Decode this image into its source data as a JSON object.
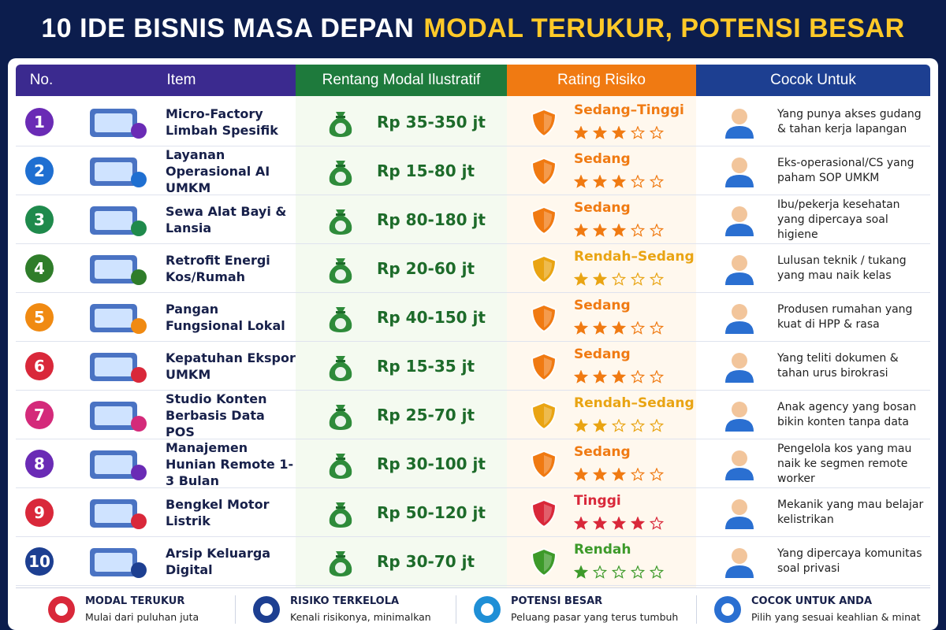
{
  "header": {
    "title": "10 IDE BISNIS MASA DEPAN",
    "title_highlight": "MODAL TERUKUR, POTENSI BESAR"
  },
  "table": {
    "columns": [
      "No.",
      "Item",
      "Rentang Modal Ilustratif",
      "Rating Risiko",
      "Cocok Untuk"
    ],
    "rows": [
      {
        "no": 1,
        "color": "#6a2bb5",
        "item": "Micro-Factory Limbah Spesifik",
        "modal": "Rp 35-350 jt",
        "risk": "Sedang–Tinggi",
        "risk_color": "#f07a12",
        "stars": 3,
        "fit": "Yang punya akses gudang & tahan kerja lapangan"
      },
      {
        "no": 2,
        "color": "#1f6fd1",
        "item": "Layanan Operasional AI UMKM",
        "modal": "Rp 15-80 jt",
        "risk": "Sedang",
        "risk_color": "#f07a12",
        "stars": 3,
        "fit": "Eks-operasional/CS yang paham SOP UMKM"
      },
      {
        "no": 3,
        "color": "#1f8a4c",
        "item": "Sewa Alat Bayi & Lansia",
        "modal": "Rp 80-180 jt",
        "risk": "Sedang",
        "risk_color": "#f07a12",
        "stars": 3,
        "fit": "Ibu/pekerja kesehatan yang dipercaya soal higiene"
      },
      {
        "no": 4,
        "color": "#2f7d2a",
        "item": "Retrofit Energi Kos/Rumah",
        "modal": "Rp 20-60 jt",
        "risk": "Rendah–Sedang",
        "risk_color": "#e9a413",
        "stars": 2,
        "fit": "Lulusan teknik / tukang yang mau naik kelas"
      },
      {
        "no": 5,
        "color": "#f08a12",
        "item": "Pangan Fungsional Lokal",
        "modal": "Rp 40-150 jt",
        "risk": "Sedang",
        "risk_color": "#f07a12",
        "stars": 3,
        "fit": "Produsen rumahan yang kuat di HPP & rasa"
      },
      {
        "no": 6,
        "color": "#d9283a",
        "item": "Kepatuhan Ekspor UMKM",
        "modal": "Rp 15-35 jt",
        "risk": "Sedang",
        "risk_color": "#f07a12",
        "stars": 3,
        "fit": "Yang teliti dokumen & tahan urus birokrasi"
      },
      {
        "no": 7,
        "color": "#d42a7a",
        "item": "Studio Konten Berbasis Data POS",
        "modal": "Rp 25-70 jt",
        "risk": "Rendah–Sedang",
        "risk_color": "#e9a413",
        "stars": 2,
        "fit": "Anak agency yang bosan bikin konten tanpa data"
      },
      {
        "no": 8,
        "color": "#6a2bb5",
        "item": "Manajemen Hunian Remote 1-3 Bulan",
        "modal": "Rp 30-100 jt",
        "risk": "Sedang",
        "risk_color": "#f07a12",
        "stars": 3,
        "fit": "Pengelola kos yang mau naik ke segmen remote worker"
      },
      {
        "no": 9,
        "color": "#d9283a",
        "item": "Bengkel Motor Listrik",
        "modal": "Rp 50-120 jt",
        "risk": "Tinggi",
        "risk_color": "#d9283a",
        "stars": 4,
        "fit": "Mekanik yang mau belajar kelistrikan"
      },
      {
        "no": 10,
        "color": "#1d3f91",
        "item": "Arsip Keluarga Digital",
        "modal": "Rp 30-70 jt",
        "risk": "Rendah",
        "risk_color": "#3d9a2a",
        "stars": 1,
        "fit": "Yang dipercaya komunitas soal privasi"
      }
    ]
  },
  "footer": [
    {
      "title": "MODAL TERUKUR",
      "text": "Mulai dari puluhan juta",
      "color": "#d9283a"
    },
    {
      "title": "RISIKO TERKELOLA",
      "text": "Kenali risikonya, minimalkan",
      "color": "#1d3f91"
    },
    {
      "title": "POTENSI BESAR",
      "text": "Peluang pasar yang terus tumbuh",
      "color": "#1f8fd6"
    },
    {
      "title": "COCOK UNTUK ANDA",
      "text": "Pilih yang sesuai keahlian & minat",
      "color": "#2a6fd1"
    }
  ]
}
